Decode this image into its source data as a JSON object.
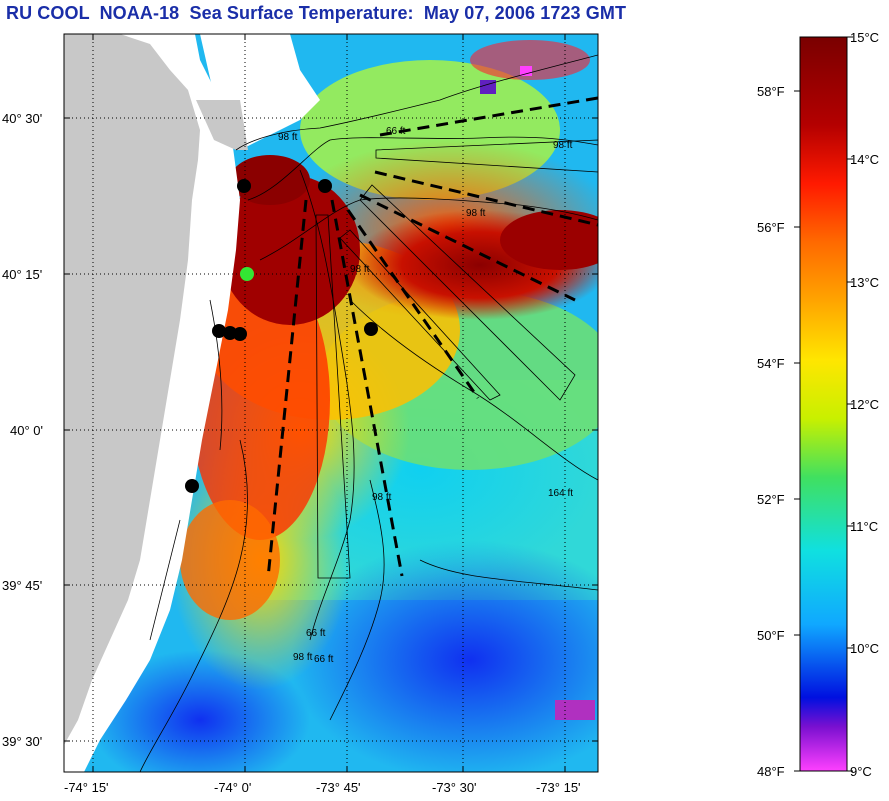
{
  "title": "RU COOL  NOAA-18  Sea Surface Temperature:  May 07, 2006 1723 GMT",
  "map": {
    "lat_labels": [
      "40° 30'",
      "40° 15'",
      "40° 0'",
      "39° 45'",
      "39° 30'"
    ],
    "lon_labels": [
      "-74° 15'",
      "-74° 0'",
      "-73° 45'",
      "-73° 30'",
      "-73° 15'"
    ],
    "contour_labels": [
      "66 ft",
      "98 ft",
      "98 ft",
      "98 ft",
      "98 ft",
      "164 ft",
      "66 ft",
      "98 ft",
      "66 ft",
      "98 ft"
    ],
    "stations": [
      {
        "type": "black"
      },
      {
        "type": "black"
      },
      {
        "type": "green"
      },
      {
        "type": "black"
      },
      {
        "type": "black"
      },
      {
        "type": "black"
      },
      {
        "type": "black"
      },
      {
        "type": "black"
      }
    ],
    "colors": {
      "land": "#c8c8c8",
      "black_station": "#000000",
      "green_station": "#33e633"
    }
  },
  "colorbar": {
    "celsius_labels": [
      "15°C",
      "14°C",
      "13°C",
      "12°C",
      "11°C",
      "10°C",
      "9°C"
    ],
    "fahrenheit_labels": [
      "58°F",
      "56°F",
      "54°F",
      "52°F",
      "50°F",
      "48°F"
    ],
    "range_celsius": [
      9,
      15
    ]
  }
}
